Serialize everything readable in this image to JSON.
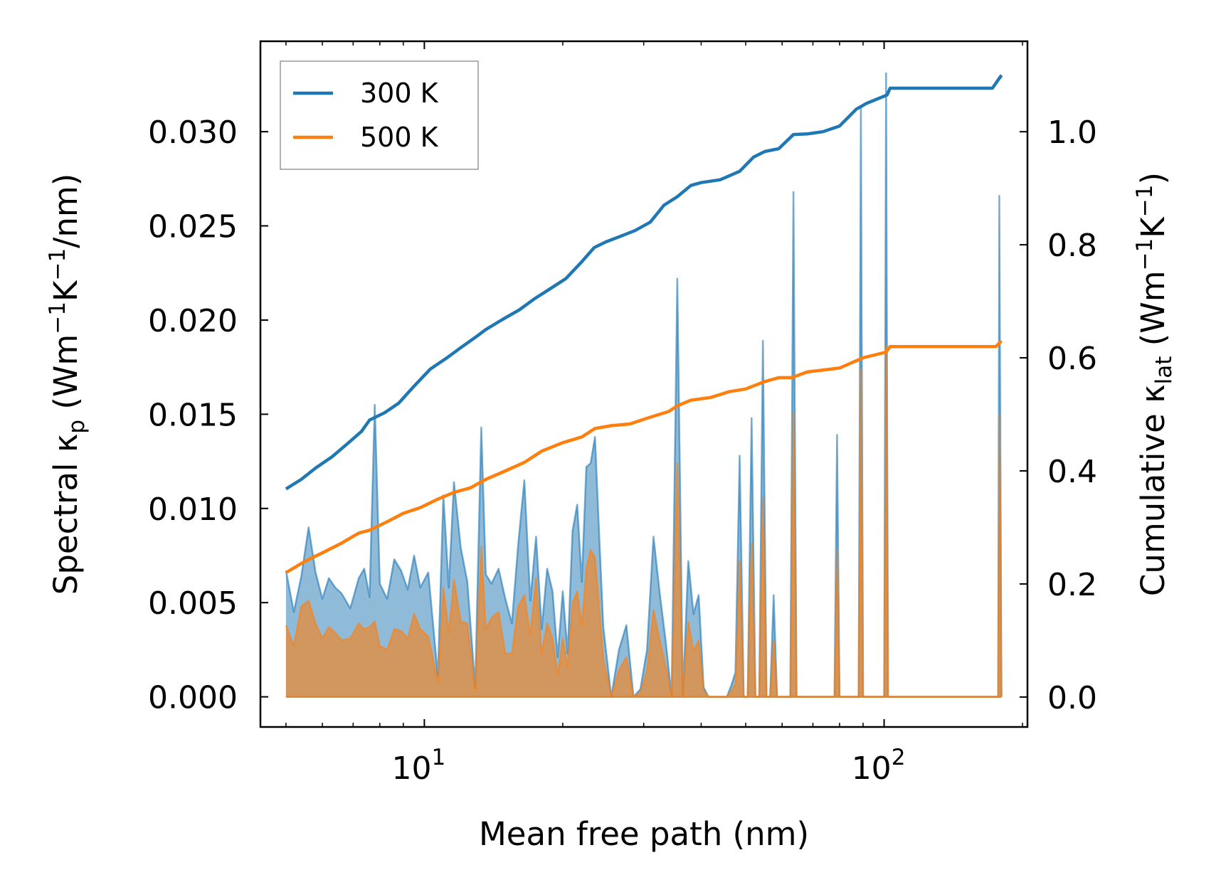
{
  "chart_data": {
    "type": "line",
    "title": "",
    "xlabel": "Mean free path (nm)",
    "ylabel_left": {
      "main": "Spectral κ",
      "sub": "p",
      "unit_prefix": " (Wm",
      "sup1": "−1",
      "mid": "K",
      "sup2": "−1",
      "unit_suffix": "/nm)"
    },
    "ylabel_right": {
      "main": "Cumulative κ",
      "sub": "lat",
      "unit_prefix": " (Wm",
      "sup1": "−1",
      "mid": "K",
      "sup2": "−1",
      "unit_suffix": ")"
    },
    "xscale": "log",
    "xlim": [
      4.4,
      205
    ],
    "ylim_left": [
      -0.0016,
      0.0348
    ],
    "ylim_right": [
      -0.053,
      1.16
    ],
    "x_ticks": [
      {
        "value": 10,
        "base": "10",
        "exp": "1"
      },
      {
        "value": 100,
        "base": "10",
        "exp": "2"
      }
    ],
    "y_ticks_left": [
      "0.000",
      "0.005",
      "0.010",
      "0.015",
      "0.020",
      "0.025",
      "0.030"
    ],
    "y_ticks_right": [
      "0.0",
      "0.2",
      "0.4",
      "0.6",
      "0.8",
      "1.0"
    ],
    "legend": {
      "position": "top-left",
      "entries": [
        "300 K",
        "500 K"
      ]
    },
    "colors": {
      "s300": "#1f77b4",
      "s500": "#ff7f0e"
    },
    "series": [
      {
        "name": "300 K",
        "axis": "right",
        "kind": "cumulative",
        "x": [
          5.0,
          5.4,
          5.8,
          6.3,
          6.8,
          7.3,
          7.6,
          8.2,
          8.8,
          9.5,
          10.3,
          11.2,
          12.0,
          13.0,
          13.6,
          14.8,
          16.1,
          17.4,
          18.6,
          20.3,
          22.0,
          23.4,
          24.8,
          26.7,
          28.7,
          31.0,
          33.2,
          35.5,
          38.0,
          40.0,
          44.0,
          48.5,
          52.0,
          55.0,
          59.0,
          63.5,
          68.0,
          73.5,
          80.0,
          87.0,
          91.5,
          101.5,
          103.0,
          125.0,
          150.0,
          172.0,
          180.0
        ],
        "y": [
          0.368,
          0.385,
          0.405,
          0.425,
          0.448,
          0.47,
          0.49,
          0.503,
          0.52,
          0.55,
          0.58,
          0.6,
          0.618,
          0.638,
          0.65,
          0.668,
          0.685,
          0.705,
          0.72,
          0.74,
          0.77,
          0.795,
          0.805,
          0.815,
          0.825,
          0.84,
          0.87,
          0.885,
          0.905,
          0.91,
          0.915,
          0.93,
          0.955,
          0.965,
          0.97,
          0.995,
          0.996,
          1.0,
          1.01,
          1.04,
          1.05,
          1.065,
          1.077,
          1.077,
          1.077,
          1.077,
          1.1
        ]
      },
      {
        "name": "500 K",
        "axis": "right",
        "kind": "cumulative",
        "x": [
          5.0,
          5.5,
          6.0,
          6.6,
          7.2,
          7.6,
          8.3,
          9.0,
          9.8,
          10.7,
          11.6,
          12.6,
          13.6,
          15.0,
          16.5,
          18.0,
          20.0,
          22.0,
          23.5,
          25.5,
          28.0,
          31.0,
          34.0,
          35.5,
          38.0,
          42.0,
          46.0,
          50.0,
          55.0,
          59.0,
          63.0,
          68.0,
          80.0,
          90.0,
          101.0,
          103.0,
          150.0,
          175.0,
          180.0
        ],
        "y": [
          0.22,
          0.24,
          0.255,
          0.272,
          0.29,
          0.295,
          0.31,
          0.325,
          0.335,
          0.35,
          0.362,
          0.37,
          0.385,
          0.4,
          0.415,
          0.435,
          0.45,
          0.46,
          0.475,
          0.48,
          0.483,
          0.495,
          0.505,
          0.515,
          0.525,
          0.53,
          0.54,
          0.545,
          0.558,
          0.565,
          0.565,
          0.575,
          0.582,
          0.6,
          0.61,
          0.62,
          0.62,
          0.62,
          0.63
        ]
      },
      {
        "name": "300 K spectral",
        "axis": "left",
        "kind": "spectral",
        "x": [
          5.0,
          5.2,
          5.4,
          5.6,
          5.8,
          6.0,
          6.2,
          6.4,
          6.6,
          6.9,
          7.2,
          7.4,
          7.6,
          7.8,
          8.0,
          8.3,
          8.6,
          8.9,
          9.2,
          9.5,
          9.8,
          10.2,
          10.7,
          11.0,
          11.3,
          11.6,
          12.0,
          12.4,
          12.9,
          13.3,
          13.6,
          14.0,
          14.5,
          15.0,
          15.5,
          16.0,
          16.5,
          17.0,
          17.5,
          18.0,
          18.5,
          19.0,
          19.5,
          20.0,
          20.5,
          21.0,
          21.5,
          22.0,
          22.5,
          23.0,
          23.5,
          24.0,
          24.5,
          25.5,
          26.5,
          27.5,
          28.5,
          29.5,
          30.5,
          31.5,
          32.5,
          33.5,
          34.5,
          35.5,
          36.5,
          37.5,
          38.5,
          39.5,
          40.5,
          41.5,
          42.5,
          44.5,
          45.5,
          46.5,
          47.5,
          48.5,
          49.5,
          50.5,
          51.5,
          52.5,
          53.5,
          54.5,
          55.5,
          56.5,
          57.5,
          58.5,
          59.5,
          61.5,
          62.5,
          63.5,
          64.5,
          65.5,
          70.0,
          75.0,
          78.0,
          79.0,
          80.0,
          82.0,
          86.0,
          88.0,
          89.0,
          90.0,
          92.0,
          94.0,
          99.0,
          100.0,
          101.0,
          102.0,
          104.0,
          140.0,
          175.0,
          177.0,
          178.0,
          180.0
        ],
        "y": [
          0.0067,
          0.0045,
          0.0064,
          0.009,
          0.0066,
          0.0052,
          0.0063,
          0.0058,
          0.0055,
          0.0047,
          0.0063,
          0.0068,
          0.0053,
          0.0155,
          0.006,
          0.0052,
          0.0073,
          0.0067,
          0.0057,
          0.0075,
          0.0058,
          0.0066,
          0.0011,
          0.0107,
          0.0058,
          0.0114,
          0.0079,
          0.0061,
          0.0005,
          0.0143,
          0.0065,
          0.006,
          0.0068,
          0.0052,
          0.0039,
          0.0081,
          0.0115,
          0.0051,
          0.0085,
          0.0036,
          0.0068,
          0.0056,
          0.0021,
          0.0056,
          0.0023,
          0.0088,
          0.0102,
          0.0061,
          0.0122,
          0.0124,
          0.0138,
          0.0086,
          0.0037,
          0.0,
          0.0025,
          0.0038,
          0.0,
          0.0004,
          0.0025,
          0.0085,
          0.0055,
          0.0029,
          0.0,
          0.0222,
          0.0,
          0.0072,
          0.0044,
          0.0054,
          0.0005,
          0.0,
          0.0,
          0.0,
          0.0,
          0.0006,
          0.0013,
          0.0128,
          0.0,
          0.0,
          0.0148,
          0.0,
          0.0,
          0.0189,
          0.0,
          0.0,
          0.0054,
          0.0,
          0.0,
          0.0,
          0.0,
          0.0268,
          0.0,
          0.0,
          0.0,
          0.0,
          0.0,
          0.0139,
          0.0,
          0.0,
          0.0,
          0.0,
          0.0313,
          0.0,
          0.0,
          0.0,
          0.0,
          0.0,
          0.0331,
          0.0,
          0.0,
          0.0,
          0.0,
          0.0,
          0.0266,
          0.0
        ]
      },
      {
        "name": "500 K spectral",
        "axis": "left",
        "kind": "spectral",
        "x": [
          5.0,
          5.2,
          5.4,
          5.6,
          5.8,
          6.0,
          6.2,
          6.4,
          6.6,
          6.9,
          7.2,
          7.4,
          7.6,
          7.8,
          8.0,
          8.3,
          8.6,
          8.9,
          9.2,
          9.5,
          9.8,
          10.2,
          10.7,
          11.0,
          11.3,
          11.6,
          12.0,
          12.4,
          12.9,
          13.3,
          13.6,
          14.0,
          14.5,
          15.0,
          15.5,
          16.0,
          16.5,
          17.0,
          17.5,
          18.0,
          18.5,
          19.0,
          19.5,
          20.0,
          20.5,
          21.0,
          21.5,
          22.0,
          22.5,
          23.0,
          23.5,
          24.0,
          24.5,
          25.5,
          26.5,
          27.5,
          28.5,
          29.5,
          30.5,
          31.5,
          32.5,
          33.5,
          34.5,
          35.5,
          36.5,
          37.5,
          38.5,
          39.5,
          40.5,
          41.5,
          42.5,
          44.5,
          45.5,
          46.5,
          47.5,
          48.5,
          49.5,
          50.5,
          51.5,
          52.5,
          53.5,
          54.5,
          55.5,
          56.5,
          57.5,
          58.5,
          59.5,
          61.5,
          62.5,
          63.5,
          64.5,
          65.5,
          70.0,
          75.0,
          78.0,
          79.0,
          80.0,
          82.0,
          86.0,
          88.0,
          89.0,
          90.0,
          92.0,
          94.0,
          99.0,
          100.0,
          101.0,
          102.0,
          104.0,
          140.0,
          175.0,
          177.0,
          178.0,
          180.0
        ],
        "y": [
          0.0038,
          0.0027,
          0.0048,
          0.0051,
          0.0039,
          0.0031,
          0.0037,
          0.0034,
          0.003,
          0.0031,
          0.0039,
          0.0036,
          0.0037,
          0.004,
          0.0027,
          0.0025,
          0.0036,
          0.0035,
          0.0031,
          0.0044,
          0.0036,
          0.0032,
          0.0008,
          0.0058,
          0.0034,
          0.0062,
          0.004,
          0.0039,
          0.0003,
          0.008,
          0.0036,
          0.0042,
          0.0045,
          0.0023,
          0.0023,
          0.0048,
          0.0054,
          0.0033,
          0.0063,
          0.0023,
          0.0039,
          0.0031,
          0.0012,
          0.0031,
          0.0016,
          0.005,
          0.0056,
          0.0038,
          0.0068,
          0.0078,
          0.0074,
          0.0048,
          0.002,
          0.0,
          0.0014,
          0.0021,
          0.0,
          0.0002,
          0.0014,
          0.0046,
          0.003,
          0.0016,
          0.0,
          0.0124,
          0.0,
          0.004,
          0.0024,
          0.003,
          0.0003,
          0.0,
          0.0,
          0.0,
          0.0,
          0.0003,
          0.0007,
          0.0072,
          0.0,
          0.0,
          0.0081,
          0.0,
          0.0,
          0.0106,
          0.0,
          0.0,
          0.003,
          0.0,
          0.0,
          0.0,
          0.0,
          0.0151,
          0.0,
          0.0,
          0.0,
          0.0,
          0.0,
          0.0078,
          0.0,
          0.0,
          0.0,
          0.0,
          0.0174,
          0.0,
          0.0,
          0.0,
          0.0,
          0.0,
          0.0186,
          0.0,
          0.0,
          0.0,
          0.0,
          0.0,
          0.015,
          0.0
        ]
      }
    ]
  }
}
